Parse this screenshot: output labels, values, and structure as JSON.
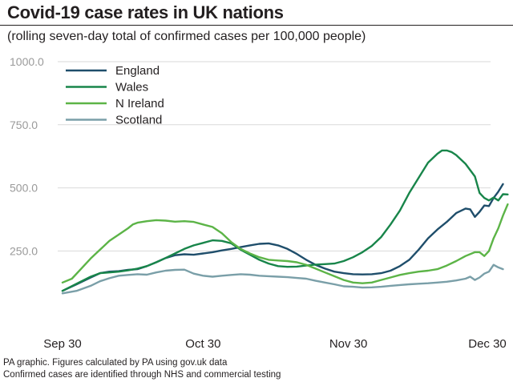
{
  "header": {
    "title": "Covid-19 case rates in UK nations",
    "subtitle": "(rolling seven-day total of confirmed cases per 100,000 people)"
  },
  "footer": {
    "line1": "PA graphic. Figures calculated by PA using gov.uk data",
    "line2": "Confirmed cases are identified through NHS and commercial testing"
  },
  "chart_data": {
    "type": "line",
    "title": "Covid-19 case rates in UK nations",
    "subtitle": "(rolling seven-day total of confirmed cases per 100,000 people)",
    "xlabel": "",
    "ylabel": "",
    "x_unit": "days since Sep 30",
    "xlim": [
      0,
      91
    ],
    "ylim": [
      0,
      1000
    ],
    "grid": true,
    "legend_position": "top-left",
    "y_ticks": [
      {
        "value": 1000,
        "label": "1000.0"
      },
      {
        "value": 750,
        "label": "750.0"
      },
      {
        "value": 500,
        "label": "500.0"
      },
      {
        "value": 250,
        "label": "250.0"
      }
    ],
    "x_ticks": [
      {
        "value": 0,
        "label": "Sep 30"
      },
      {
        "value": 30,
        "label": "Oct 30"
      },
      {
        "value": 61,
        "label": "Nov 30"
      },
      {
        "value": 91,
        "label": "Dec 30"
      }
    ],
    "series": [
      {
        "name": "England",
        "color": "#1f4e6b",
        "points": [
          [
            0,
            92
          ],
          [
            3,
            118
          ],
          [
            6,
            145
          ],
          [
            8,
            162
          ],
          [
            10,
            168
          ],
          [
            12,
            170
          ],
          [
            14,
            175
          ],
          [
            16,
            178
          ],
          [
            18,
            190
          ],
          [
            20,
            205
          ],
          [
            22,
            222
          ],
          [
            24,
            233
          ],
          [
            26,
            237
          ],
          [
            28,
            235
          ],
          [
            30,
            240
          ],
          [
            32,
            245
          ],
          [
            34,
            252
          ],
          [
            36,
            258
          ],
          [
            38,
            265
          ],
          [
            40,
            272
          ],
          [
            42,
            278
          ],
          [
            44,
            280
          ],
          [
            46,
            272
          ],
          [
            48,
            258
          ],
          [
            50,
            238
          ],
          [
            52,
            215
          ],
          [
            54,
            195
          ],
          [
            56,
            180
          ],
          [
            58,
            168
          ],
          [
            60,
            162
          ],
          [
            62,
            158
          ],
          [
            64,
            157
          ],
          [
            66,
            158
          ],
          [
            68,
            162
          ],
          [
            70,
            172
          ],
          [
            72,
            190
          ],
          [
            74,
            215
          ],
          [
            76,
            255
          ],
          [
            78,
            300
          ],
          [
            80,
            335
          ],
          [
            82,
            365
          ],
          [
            84,
            400
          ],
          [
            86,
            418
          ],
          [
            87,
            415
          ],
          [
            88,
            385
          ],
          [
            89,
            405
          ],
          [
            90,
            430
          ],
          [
            91,
            428
          ],
          [
            92,
            460
          ],
          [
            93,
            485
          ],
          [
            94,
            515
          ]
        ]
      },
      {
        "name": "Wales",
        "color": "#18854a",
        "points": [
          [
            0,
            92
          ],
          [
            3,
            120
          ],
          [
            6,
            148
          ],
          [
            8,
            162
          ],
          [
            10,
            165
          ],
          [
            12,
            168
          ],
          [
            14,
            173
          ],
          [
            16,
            180
          ],
          [
            18,
            190
          ],
          [
            20,
            205
          ],
          [
            22,
            222
          ],
          [
            24,
            240
          ],
          [
            26,
            258
          ],
          [
            28,
            272
          ],
          [
            30,
            282
          ],
          [
            32,
            292
          ],
          [
            34,
            290
          ],
          [
            36,
            280
          ],
          [
            38,
            255
          ],
          [
            40,
            235
          ],
          [
            42,
            215
          ],
          [
            44,
            200
          ],
          [
            46,
            190
          ],
          [
            48,
            187
          ],
          [
            50,
            188
          ],
          [
            52,
            192
          ],
          [
            54,
            196
          ],
          [
            56,
            198
          ],
          [
            58,
            200
          ],
          [
            60,
            210
          ],
          [
            62,
            225
          ],
          [
            64,
            245
          ],
          [
            66,
            270
          ],
          [
            68,
            305
          ],
          [
            70,
            355
          ],
          [
            72,
            410
          ],
          [
            74,
            480
          ],
          [
            76,
            540
          ],
          [
            78,
            600
          ],
          [
            80,
            635
          ],
          [
            81,
            648
          ],
          [
            82,
            648
          ],
          [
            83,
            642
          ],
          [
            84,
            630
          ],
          [
            86,
            595
          ],
          [
            88,
            545
          ],
          [
            89,
            480
          ],
          [
            90,
            460
          ],
          [
            91,
            450
          ],
          [
            92,
            462
          ],
          [
            93,
            450
          ],
          [
            94,
            475
          ],
          [
            95,
            474
          ]
        ]
      },
      {
        "name": "N Ireland",
        "color": "#5cb447",
        "points": [
          [
            0,
            125
          ],
          [
            2,
            140
          ],
          [
            4,
            180
          ],
          [
            6,
            220
          ],
          [
            8,
            255
          ],
          [
            10,
            290
          ],
          [
            12,
            315
          ],
          [
            14,
            340
          ],
          [
            15,
            355
          ],
          [
            16,
            362
          ],
          [
            18,
            368
          ],
          [
            20,
            372
          ],
          [
            22,
            370
          ],
          [
            24,
            366
          ],
          [
            26,
            368
          ],
          [
            28,
            365
          ],
          [
            30,
            355
          ],
          [
            32,
            345
          ],
          [
            34,
            320
          ],
          [
            36,
            285
          ],
          [
            38,
            258
          ],
          [
            40,
            240
          ],
          [
            42,
            225
          ],
          [
            44,
            215
          ],
          [
            46,
            212
          ],
          [
            48,
            210
          ],
          [
            50,
            205
          ],
          [
            52,
            195
          ],
          [
            54,
            180
          ],
          [
            56,
            165
          ],
          [
            58,
            150
          ],
          [
            60,
            135
          ],
          [
            62,
            125
          ],
          [
            64,
            122
          ],
          [
            66,
            125
          ],
          [
            68,
            135
          ],
          [
            70,
            145
          ],
          [
            72,
            155
          ],
          [
            74,
            162
          ],
          [
            76,
            168
          ],
          [
            78,
            172
          ],
          [
            80,
            178
          ],
          [
            82,
            192
          ],
          [
            84,
            210
          ],
          [
            86,
            230
          ],
          [
            88,
            245
          ],
          [
            89,
            245
          ],
          [
            90,
            230
          ],
          [
            91,
            250
          ],
          [
            92,
            300
          ],
          [
            93,
            340
          ],
          [
            94,
            390
          ],
          [
            95,
            435
          ]
        ]
      },
      {
        "name": "Scotland",
        "color": "#7a9fa8",
        "points": [
          [
            0,
            82
          ],
          [
            3,
            92
          ],
          [
            6,
            112
          ],
          [
            8,
            130
          ],
          [
            10,
            142
          ],
          [
            12,
            152
          ],
          [
            14,
            155
          ],
          [
            16,
            158
          ],
          [
            18,
            156
          ],
          [
            20,
            165
          ],
          [
            22,
            172
          ],
          [
            24,
            175
          ],
          [
            26,
            176
          ],
          [
            28,
            160
          ],
          [
            30,
            152
          ],
          [
            32,
            148
          ],
          [
            34,
            152
          ],
          [
            36,
            155
          ],
          [
            38,
            158
          ],
          [
            40,
            156
          ],
          [
            42,
            152
          ],
          [
            44,
            150
          ],
          [
            46,
            148
          ],
          [
            48,
            146
          ],
          [
            50,
            143
          ],
          [
            52,
            140
          ],
          [
            54,
            132
          ],
          [
            56,
            125
          ],
          [
            58,
            118
          ],
          [
            60,
            110
          ],
          [
            62,
            108
          ],
          [
            64,
            105
          ],
          [
            66,
            106
          ],
          [
            68,
            108
          ],
          [
            70,
            112
          ],
          [
            72,
            115
          ],
          [
            74,
            118
          ],
          [
            76,
            120
          ],
          [
            78,
            122
          ],
          [
            80,
            125
          ],
          [
            82,
            128
          ],
          [
            84,
            133
          ],
          [
            86,
            140
          ],
          [
            87,
            148
          ],
          [
            88,
            135
          ],
          [
            89,
            145
          ],
          [
            90,
            160
          ],
          [
            91,
            168
          ],
          [
            92,
            195
          ],
          [
            93,
            185
          ],
          [
            94,
            178
          ]
        ]
      }
    ]
  }
}
